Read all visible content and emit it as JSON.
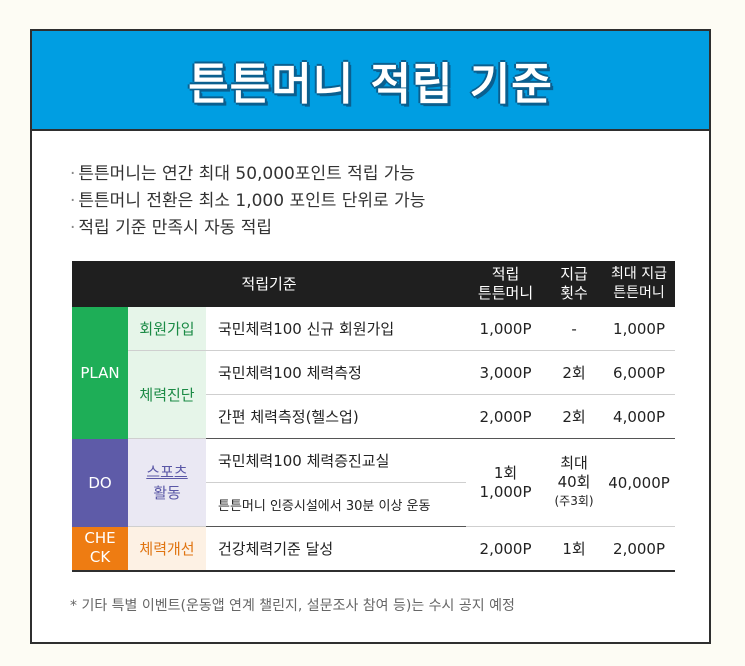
{
  "title": "튼튼머니 적립 기준",
  "bullets": [
    "튼튼머니는 연간 최대 50,000포인트 적립 가능",
    "튼튼머니 전환은 최소 1,000 포인트 단위로 가능",
    "적립 기준 만족시 자동 적립"
  ],
  "bullet_marker": "·",
  "table": {
    "headers": {
      "criteria": "적립기준",
      "points_l1": "적립",
      "points_l2": "튼튼머니",
      "count_l1": "지급",
      "count_l2": "횟수",
      "max_l1": "최대 지급",
      "max_l2": "튼튼머니"
    },
    "stages": {
      "plan": "PLAN",
      "do": "DO",
      "check_l1": "CHE",
      "check_l2": "CK"
    },
    "categories": {
      "signup": "회원가입",
      "fitness_test": "체력진단",
      "sports_l1": "스포츠",
      "sports_l2": "활동",
      "improvement": "체력개선"
    },
    "rows": [
      {
        "desc": "국민체력100 신규 회원가입",
        "points": "1,000P",
        "count": "-",
        "max": "1,000P"
      },
      {
        "desc": "국민체력100 체력측정",
        "points": "3,000P",
        "count": "2회",
        "max": "6,000P"
      },
      {
        "desc": "간편 체력측정(헬스업)",
        "points": "2,000P",
        "count": "2회",
        "max": "4,000P"
      },
      {
        "desc": "국민체력100 체력증진교실"
      },
      {
        "desc": "튼튼머니 인증시설에서 30분 이상 운동"
      },
      {
        "desc": "건강체력기준 달성",
        "points": "2,000P",
        "count": "1회",
        "max": "2,000P"
      }
    ],
    "do_group": {
      "points_l1": "1회",
      "points_l2": "1,000P",
      "count_l1": "최대",
      "count_l2": "40회",
      "count_note": "(주3회)",
      "max": "40,000P"
    }
  },
  "footnote": "* 기타 특별 이벤트(운동앱 연계 챌린지, 설문조사 참여 등)는 수시 공지 예정",
  "colors": {
    "banner": "#009ee2",
    "plan": "#1eae57",
    "do": "#5e5ba8",
    "check": "#ee7c12",
    "header": "#1f1f1f"
  }
}
